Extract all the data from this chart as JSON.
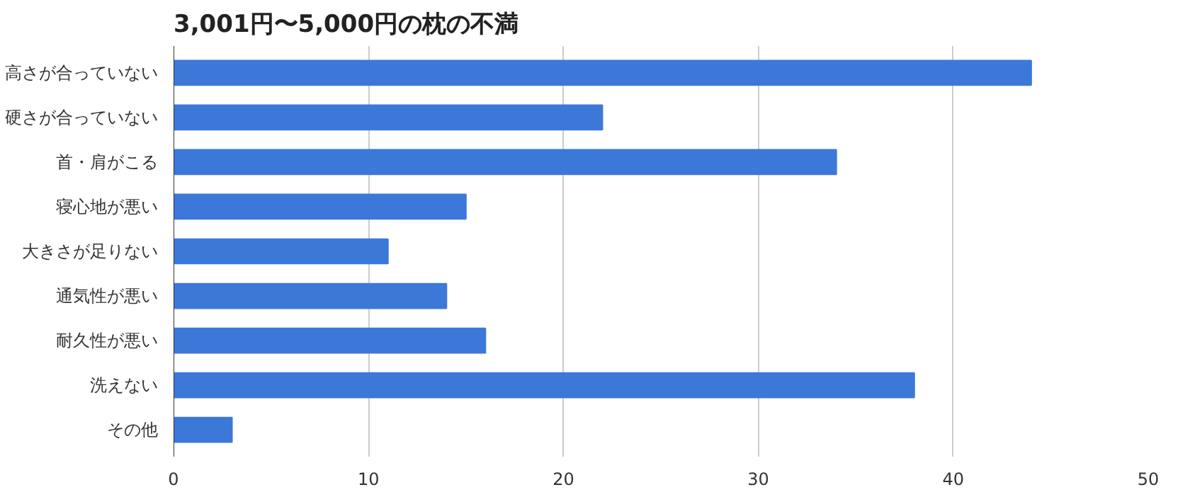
{
  "chart_data": {
    "type": "bar",
    "orientation": "horizontal",
    "title": "3,001円〜5,000円の枕の不満",
    "categories": [
      "高さが合っていない",
      "硬さが合っていない",
      "首・肩がこる",
      "寝心地が悪い",
      "大きさが足りない",
      "通気性が悪い",
      "耐久性が悪い",
      "洗えない",
      "その他"
    ],
    "values": [
      44,
      22,
      34,
      15,
      11,
      14,
      16,
      38,
      3
    ],
    "color": "#3c78d8",
    "xlim": [
      0,
      50
    ],
    "xticks": [
      0,
      10,
      20,
      30,
      40,
      50
    ],
    "grid": "x"
  }
}
